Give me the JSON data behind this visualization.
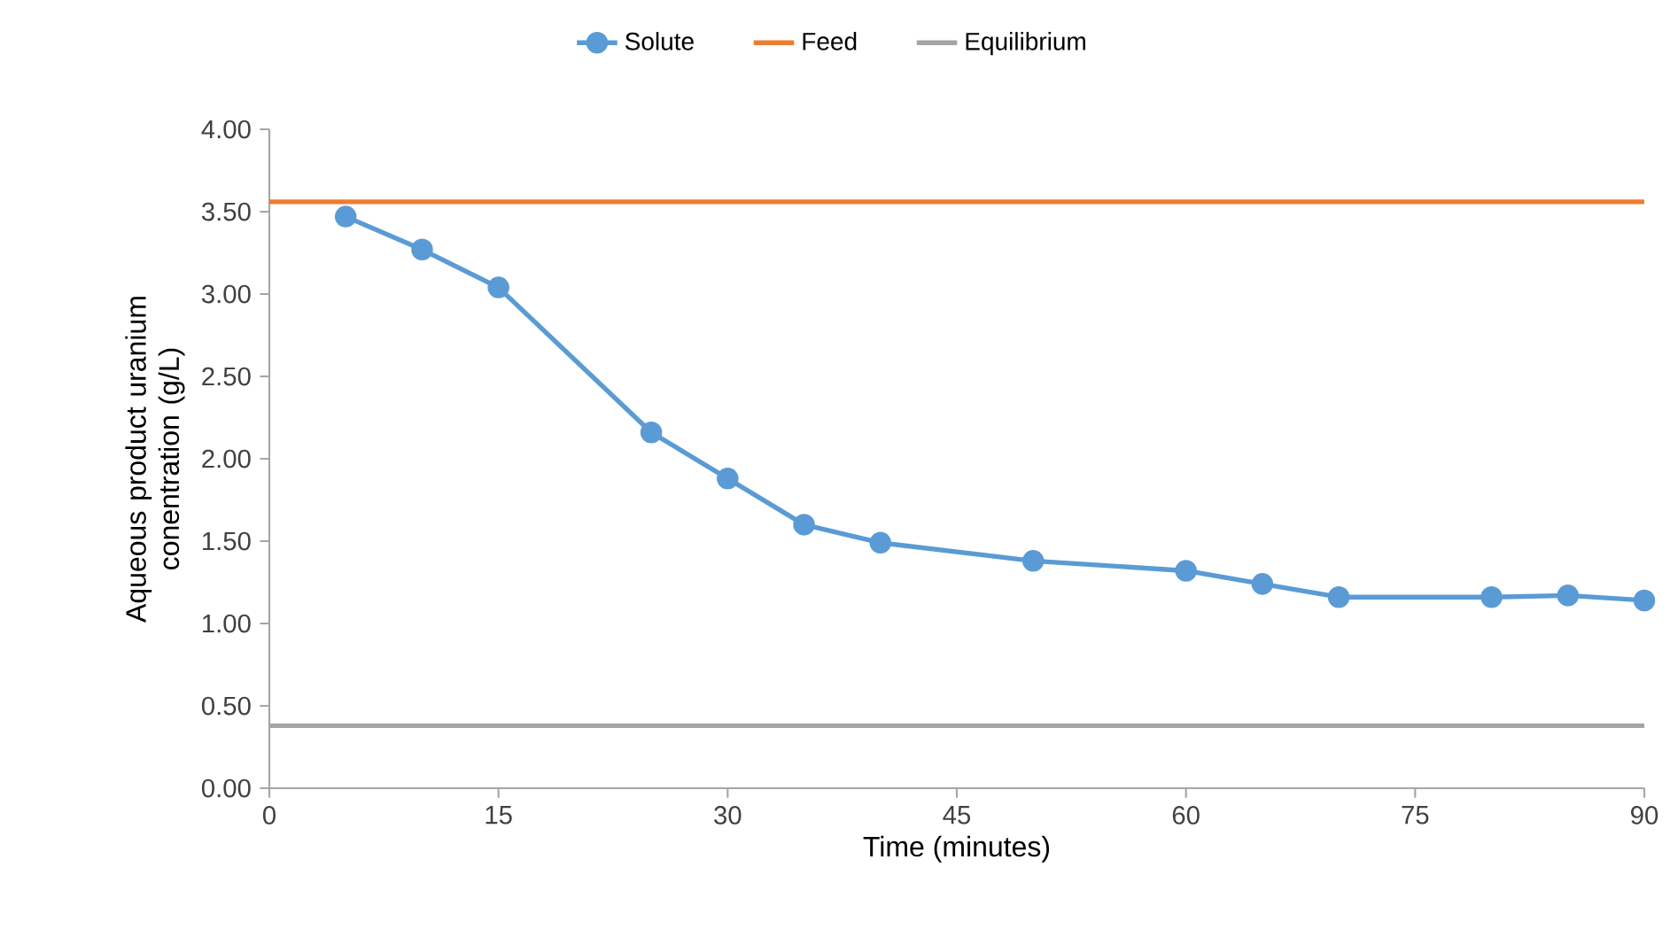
{
  "chart_data": {
    "type": "line",
    "xlabel": "Time (minutes)",
    "ylabel": "Aqueous product uranium conentration (g/L)",
    "xlim": [
      0,
      90
    ],
    "xticks": [
      0,
      15,
      30,
      45,
      60,
      75,
      90
    ],
    "ylim": [
      0,
      4
    ],
    "yticks": [
      {
        "value": 0,
        "label": "0.00"
      },
      {
        "value": 0.5,
        "label": "0.50"
      },
      {
        "value": 1,
        "label": "1.00"
      },
      {
        "value": 1.5,
        "label": "1.50"
      },
      {
        "value": 2,
        "label": "2.00"
      },
      {
        "value": 2.5,
        "label": "2.50"
      },
      {
        "value": 3,
        "label": "3.00"
      },
      {
        "value": 3.5,
        "label": "3.50"
      },
      {
        "value": 4,
        "label": "4.00"
      }
    ],
    "legend": "top",
    "line_style": "solid",
    "series": [
      {
        "name": "Solute",
        "color": "#5b9bd5",
        "marker": "circle",
        "x": [
          5,
          10,
          15,
          25,
          30,
          35,
          40,
          50,
          60,
          65,
          70,
          80,
          85,
          90
        ],
        "values": [
          3.47,
          3.27,
          3.04,
          2.16,
          1.88,
          1.6,
          1.49,
          1.38,
          1.32,
          1.24,
          1.16,
          1.16,
          1.17,
          1.14
        ]
      },
      {
        "name": "Feed",
        "color": "#ed7d31",
        "marker": "none",
        "x": [
          0,
          90
        ],
        "values": [
          3.56,
          3.56
        ]
      },
      {
        "name": "Equilibrium",
        "color": "#a5a5a5",
        "marker": "none",
        "x": [
          0,
          90
        ],
        "values": [
          0.38,
          0.38
        ]
      }
    ]
  }
}
